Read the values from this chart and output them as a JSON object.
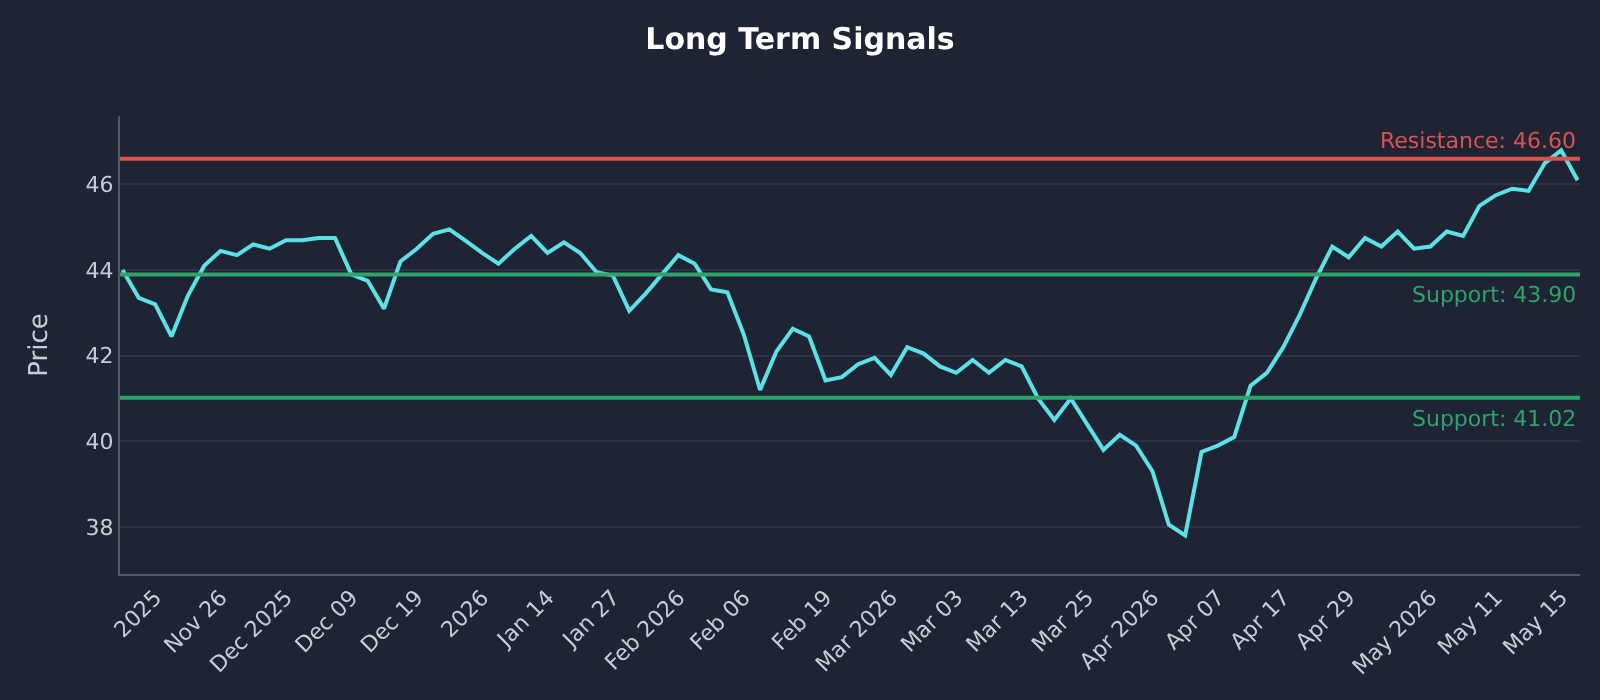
{
  "chart_data": {
    "type": "line",
    "title": "Long Term Signals",
    "ylabel": "Price",
    "categories": [
      null,
      null,
      "2025",
      null,
      null,
      null,
      "Nov 26",
      null,
      null,
      null,
      "Dec 2025",
      null,
      null,
      null,
      "Dec 09",
      null,
      null,
      null,
      "Dec 19",
      null,
      null,
      null,
      "2026",
      null,
      null,
      null,
      "Jan 14",
      null,
      null,
      null,
      "Jan 27",
      null,
      null,
      null,
      "Feb 2026",
      null,
      null,
      null,
      "Feb 06",
      null,
      null,
      null,
      null,
      "Feb 19",
      null,
      null,
      null,
      "Mar 2026",
      null,
      null,
      null,
      "Mar 03",
      null,
      null,
      null,
      "Mar 13",
      null,
      null,
      null,
      "Mar 25",
      null,
      null,
      null,
      "Apr 2026",
      null,
      null,
      null,
      "Apr 07",
      null,
      null,
      null,
      "Apr 17",
      null,
      null,
      null,
      "Apr 29",
      null,
      null,
      null,
      null,
      "May 2026",
      null,
      null,
      null,
      "May 11",
      null,
      null,
      null,
      "May 15",
      null
    ],
    "series": [
      {
        "color": "#5ce1e6",
        "values": [
          44.0,
          43.35,
          43.2,
          42.45,
          43.4,
          44.1,
          44.45,
          44.35,
          44.6,
          44.5,
          44.7,
          44.7,
          44.75,
          44.75,
          43.9,
          43.75,
          43.1,
          44.2,
          44.5,
          44.85,
          44.95,
          44.68,
          44.4,
          44.15,
          44.5,
          44.8,
          44.4,
          44.65,
          44.4,
          43.95,
          43.87,
          43.05,
          43.45,
          43.9,
          44.35,
          44.15,
          43.55,
          43.48,
          42.5,
          41.2,
          42.1,
          42.63,
          42.45,
          41.42,
          41.5,
          41.8,
          41.95,
          41.55,
          42.2,
          42.05,
          41.75,
          41.6,
          41.9,
          41.6,
          41.9,
          41.75,
          41.0,
          40.5,
          41.0,
          40.4,
          39.8,
          40.15,
          39.9,
          39.3,
          38.05,
          37.8,
          39.75,
          39.9,
          40.1,
          41.3,
          41.6,
          42.2,
          42.95,
          43.8,
          44.55,
          44.3,
          44.75,
          44.55,
          44.9,
          44.5,
          44.55,
          44.9,
          44.8,
          45.5,
          45.75,
          45.9,
          45.85,
          46.5,
          46.8,
          46.1
        ]
      }
    ],
    "ylim": [
      36.9,
      47.6
    ],
    "yticks": [
      38,
      40,
      42,
      44,
      46
    ],
    "ref_lines": [
      {
        "axis": "y",
        "value": 46.6,
        "label": "Resistance: 46.60",
        "color": "#d9534f"
      },
      {
        "axis": "y",
        "value": 43.9,
        "label": "Support: 43.90",
        "color": "#2ea36a"
      },
      {
        "axis": "y",
        "value": 41.02,
        "label": "Support: 41.02",
        "color": "#2ea36a"
      }
    ],
    "grid": "y",
    "marker": "none",
    "line_style": "solid"
  }
}
